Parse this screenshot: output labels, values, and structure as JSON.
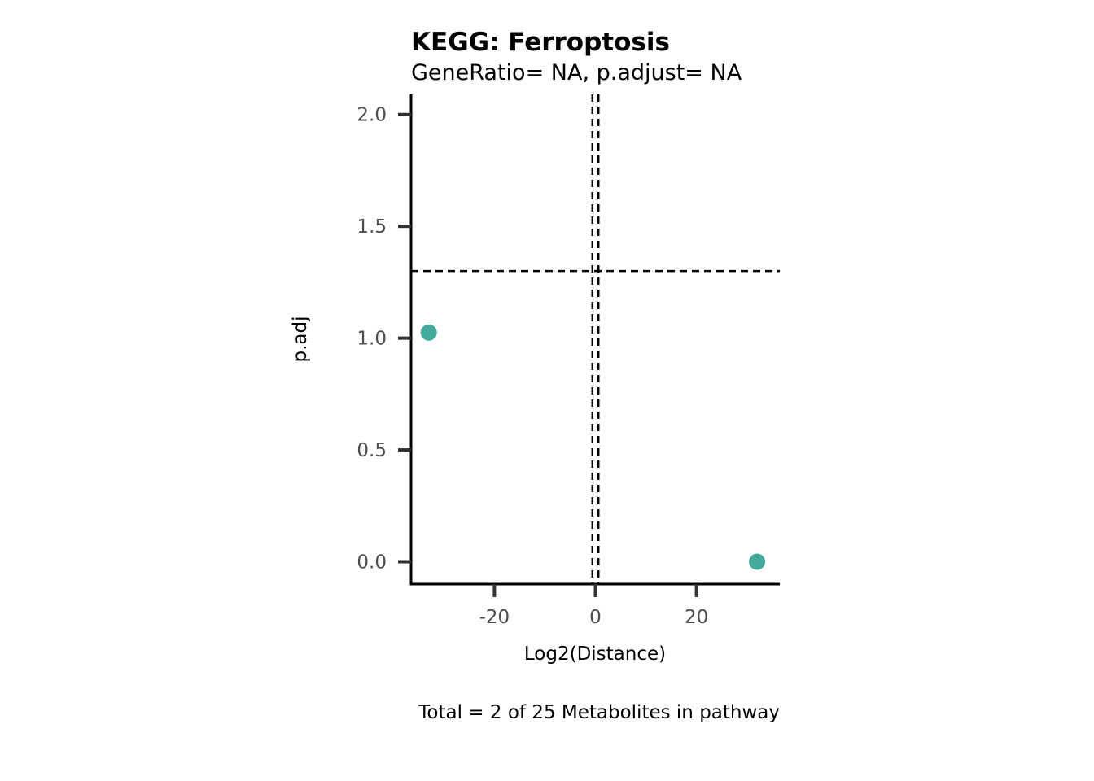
{
  "chart_data": {
    "type": "scatter",
    "title": "KEGG: Ferroptosis",
    "subtitle": "GeneRatio= NA, p.adjust= NA",
    "xlabel": "Log2(Distance)",
    "ylabel": "p.adj",
    "caption": "Total = 2 of 25 Metabolites in pathway",
    "xlim": [
      -36.5,
      36.5
    ],
    "ylim": [
      -0.1,
      2.09
    ],
    "x_ticks": [
      -20,
      0,
      20
    ],
    "x_tick_labels": [
      "-20",
      "0",
      "20"
    ],
    "y_ticks": [
      0.0,
      0.5,
      1.0,
      1.5,
      2.0
    ],
    "y_tick_labels": [
      "0.0",
      "0.5",
      "1.0",
      "1.5",
      "2.0"
    ],
    "reference_lines": {
      "vertical": [
        -0.6,
        0.6
      ],
      "horizontal": [
        1.3
      ],
      "style": "dashed"
    },
    "grid": false,
    "legend": "none",
    "point_color": "#45AA9C",
    "points": [
      {
        "x": -33,
        "y": 1.025
      },
      {
        "x": 32,
        "y": 0.0
      }
    ]
  }
}
